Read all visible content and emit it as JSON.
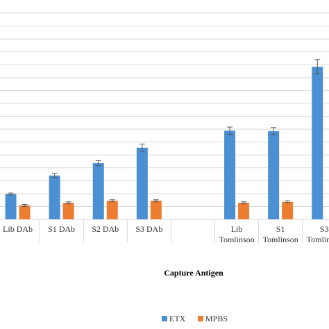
{
  "chart_data": {
    "type": "bar",
    "xlabel": "Capture Antigen",
    "categories": [
      [
        "Lib DAb"
      ],
      [
        "S1 DAb"
      ],
      [
        "S2 DAb"
      ],
      [
        "S3 DAb"
      ],
      [
        ""
      ],
      [
        "Lib",
        "Tomlinson"
      ],
      [
        "S1",
        "Tomlinson"
      ],
      [
        "S3",
        "Tomlinson"
      ]
    ],
    "series": [
      {
        "name": "ETX",
        "color": "#4a90d2",
        "values": [
          0.49,
          0.85,
          1.09,
          1.39,
          null,
          1.72,
          1.71,
          2.96
        ],
        "errors": [
          0.02,
          0.04,
          0.05,
          0.07,
          null,
          0.07,
          0.07,
          0.14
        ]
      },
      {
        "name": "MPBS",
        "color": "#ed7d31",
        "values": [
          0.27,
          0.32,
          0.36,
          0.36,
          null,
          0.32,
          0.34,
          null
        ],
        "errors": [
          0.02,
          0.02,
          0.02,
          0.02,
          null,
          0.02,
          0.02,
          null
        ]
      }
    ],
    "ylim": [
      0,
      4.0
    ],
    "grid": true,
    "legend_position": "bottom"
  }
}
